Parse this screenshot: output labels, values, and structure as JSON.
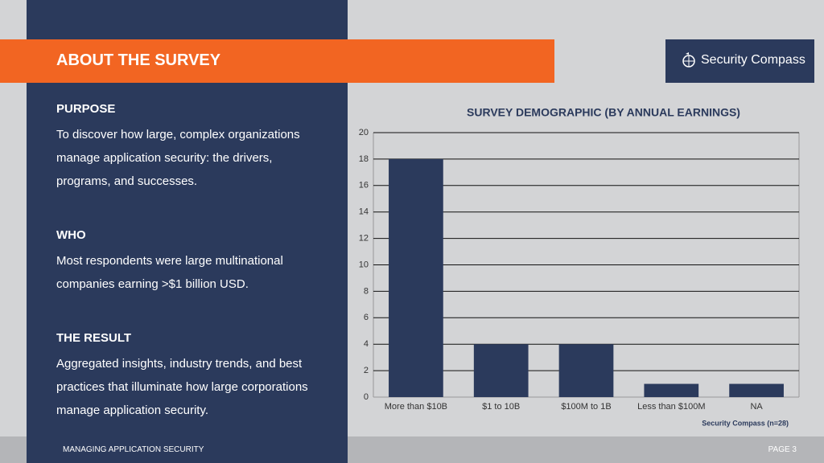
{
  "header": {
    "title": "ABOUT THE SURVEY",
    "logo": "Security Compass"
  },
  "sections": [
    {
      "heading": "PURPOSE",
      "text": "To discover how large, complex organizations manage application security: the drivers, programs, and successes."
    },
    {
      "heading": "WHO",
      "text": "Most respondents were large multinational companies earning >$1 billion USD."
    },
    {
      "heading": "THE RESULT",
      "text": "Aggregated insights, industry trends, and best practices that illuminate how large corporations manage application security."
    }
  ],
  "chart_data": {
    "type": "bar",
    "title": "SURVEY DEMOGRAPHIC (BY ANNUAL EARNINGS)",
    "categories": [
      "More than $10B",
      "$1 to 10B",
      "$100M to 1B",
      "Less than $100M",
      "NA"
    ],
    "values": [
      18,
      4,
      4,
      1,
      1
    ],
    "color": "#2b3a5c",
    "ylim": [
      0,
      20
    ],
    "yticks": [
      0,
      2,
      4,
      6,
      8,
      10,
      12,
      14,
      16,
      18,
      20
    ],
    "grid": true,
    "source": "Security Compass (n=28)"
  },
  "footer": {
    "left": "MANAGING APPLICATION SECURITY",
    "right": "PAGE 3"
  }
}
